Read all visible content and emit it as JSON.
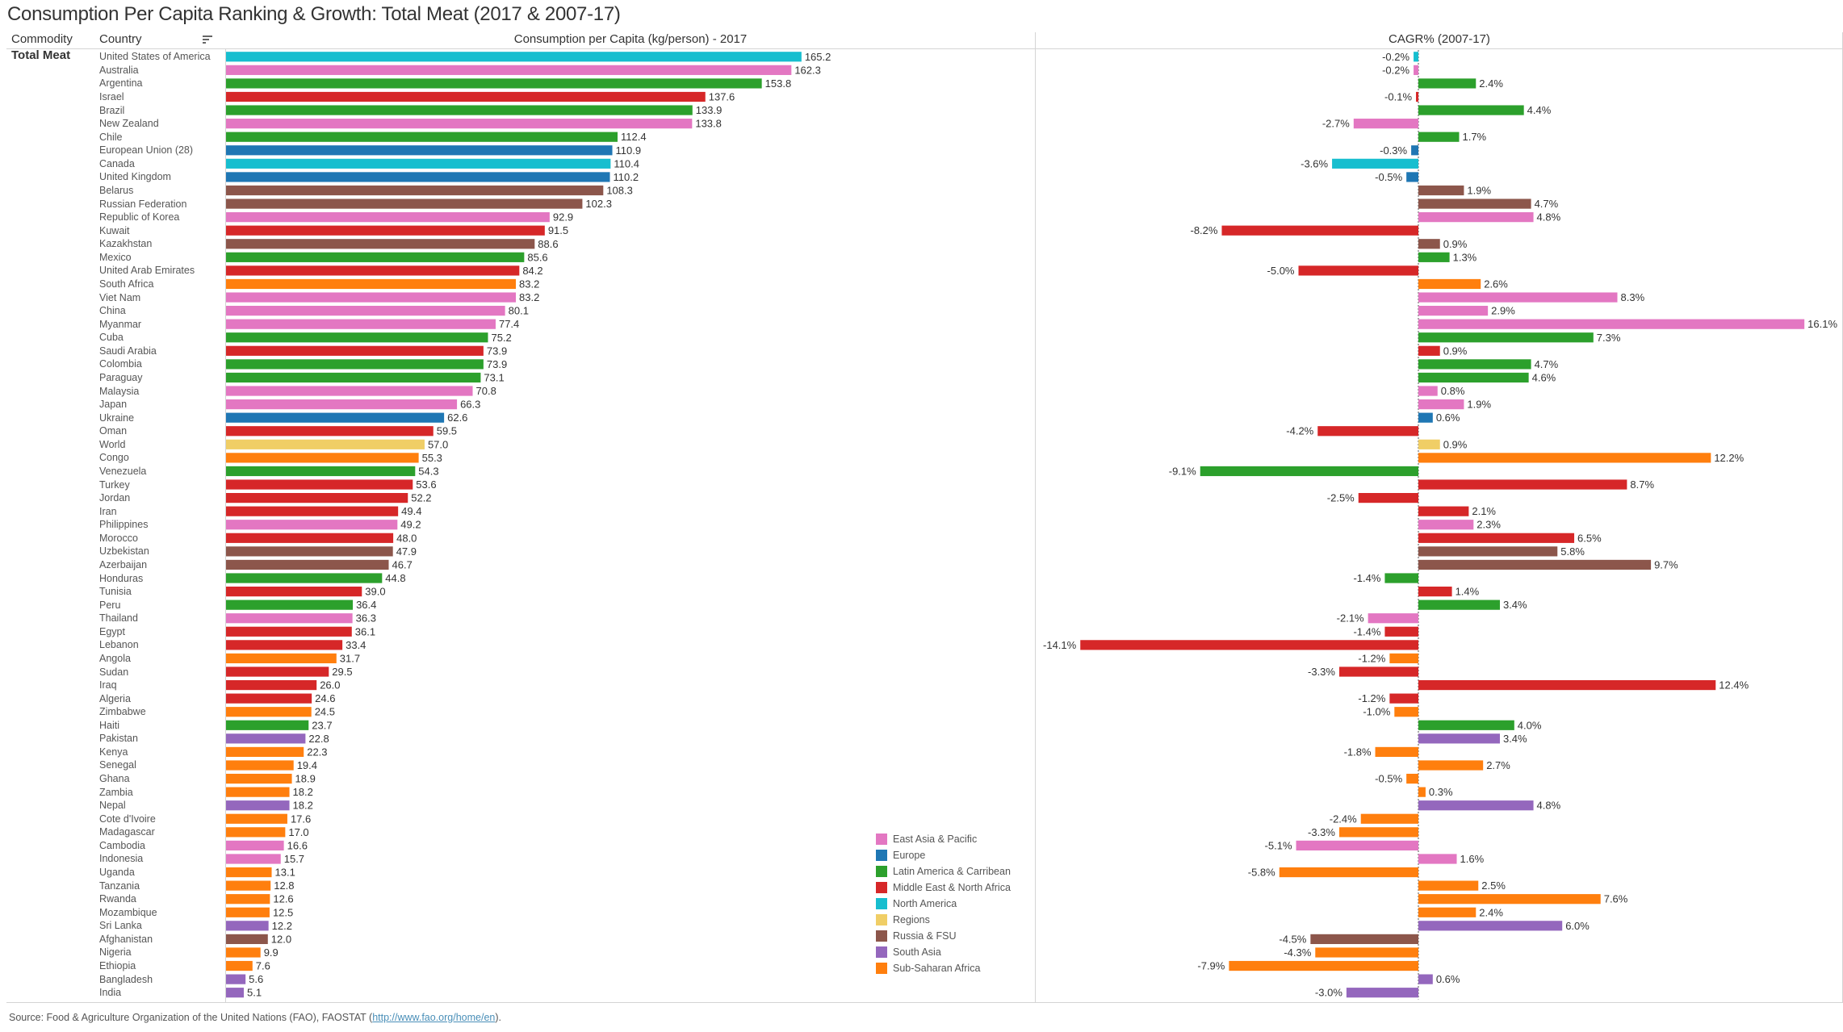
{
  "title": "Consumption Per Capita Ranking & Growth: Total Meat (2017 & 2007-17)",
  "headers": {
    "commodity": "Commodity",
    "country": "Country",
    "consumption": "Consumption per Capita (kg/person) - 2017",
    "cagr": "CAGR% (2007-17)"
  },
  "commodity_value": "Total Meat",
  "source": {
    "prefix": "Source: Food & Agriculture Organization of the United Nations (FAO), FAOSTAT (",
    "link": "http://www.fao.org/home/en",
    "suffix": ")."
  },
  "icons": {
    "sort": "sort-descending-icon"
  },
  "region_colors": {
    "East Asia & Pacific": "#e377c2",
    "Europe": "#1f77b4",
    "Latin America & Carribean": "#2ca02c",
    "Middle East & North Africa": "#d62728",
    "North America": "#17becf",
    "Regions": "#f0ce66",
    "Russia & FSU": "#8c564b",
    "South Asia": "#9467bd",
    "Sub-Saharan Africa": "#ff7f0e"
  },
  "legend": [
    "East Asia & Pacific",
    "Europe",
    "Latin America & Carribean",
    "Middle East & North Africa",
    "North America",
    "Regions",
    "Russia & FSU",
    "South Asia",
    "Sub-Saharan Africa"
  ],
  "chart_data": [
    {
      "type": "bar",
      "orientation": "horizontal",
      "title": "Consumption per Capita (kg/person) - 2017",
      "xlabel": "Consumption per Capita (kg/person) - 2017",
      "ylabel": "Country",
      "xlim": [
        0,
        180
      ],
      "grid": false,
      "legend_position": "bottom-right",
      "value_format": "0.0"
    },
    {
      "type": "bar",
      "orientation": "horizontal",
      "title": "CAGR% (2007-17)",
      "xlabel": "CAGR% (2007-17)",
      "xlim": [
        -16,
        22
      ],
      "zero_line": "dashed",
      "grid": false,
      "value_format": "0.0%"
    }
  ],
  "rows": [
    {
      "country": "United States of America",
      "region": "North America",
      "consumption": 165.2,
      "cagr": -0.2
    },
    {
      "country": "Australia",
      "region": "East Asia & Pacific",
      "consumption": 162.3,
      "cagr": -0.2
    },
    {
      "country": "Argentina",
      "region": "Latin America & Carribean",
      "consumption": 153.8,
      "cagr": 2.4
    },
    {
      "country": "Israel",
      "region": "Middle East & North Africa",
      "consumption": 137.6,
      "cagr": -0.1
    },
    {
      "country": "Brazil",
      "region": "Latin America & Carribean",
      "consumption": 133.9,
      "cagr": 4.4
    },
    {
      "country": "New Zealand",
      "region": "East Asia & Pacific",
      "consumption": 133.8,
      "cagr": -2.7
    },
    {
      "country": "Chile",
      "region": "Latin America & Carribean",
      "consumption": 112.4,
      "cagr": 1.7
    },
    {
      "country": "European Union (28)",
      "region": "Europe",
      "consumption": 110.9,
      "cagr": -0.3
    },
    {
      "country": "Canada",
      "region": "North America",
      "consumption": 110.4,
      "cagr": -3.6
    },
    {
      "country": "United Kingdom",
      "region": "Europe",
      "consumption": 110.2,
      "cagr": -0.5
    },
    {
      "country": "Belarus",
      "region": "Russia & FSU",
      "consumption": 108.3,
      "cagr": 1.9
    },
    {
      "country": "Russian Federation",
      "region": "Russia & FSU",
      "consumption": 102.3,
      "cagr": 4.7
    },
    {
      "country": "Republic of Korea",
      "region": "East Asia & Pacific",
      "consumption": 92.9,
      "cagr": 4.8
    },
    {
      "country": "Kuwait",
      "region": "Middle East & North Africa",
      "consumption": 91.5,
      "cagr": -8.2
    },
    {
      "country": "Kazakhstan",
      "region": "Russia & FSU",
      "consumption": 88.6,
      "cagr": 0.9
    },
    {
      "country": "Mexico",
      "region": "Latin America & Carribean",
      "consumption": 85.6,
      "cagr": 1.3
    },
    {
      "country": "United Arab Emirates",
      "region": "Middle East & North Africa",
      "consumption": 84.2,
      "cagr": -5.0
    },
    {
      "country": "South Africa",
      "region": "Sub-Saharan Africa",
      "consumption": 83.2,
      "cagr": 2.6
    },
    {
      "country": "Viet Nam",
      "region": "East Asia & Pacific",
      "consumption": 83.2,
      "cagr": 8.3
    },
    {
      "country": "China",
      "region": "East Asia & Pacific",
      "consumption": 80.1,
      "cagr": 2.9
    },
    {
      "country": "Myanmar",
      "region": "East Asia & Pacific",
      "consumption": 77.4,
      "cagr": 16.1
    },
    {
      "country": "Cuba",
      "region": "Latin America & Carribean",
      "consumption": 75.2,
      "cagr": 7.3
    },
    {
      "country": "Saudi Arabia",
      "region": "Middle East & North Africa",
      "consumption": 73.9,
      "cagr": 0.9
    },
    {
      "country": "Colombia",
      "region": "Latin America & Carribean",
      "consumption": 73.9,
      "cagr": 4.7
    },
    {
      "country": "Paraguay",
      "region": "Latin America & Carribean",
      "consumption": 73.1,
      "cagr": 4.6
    },
    {
      "country": "Malaysia",
      "region": "East Asia & Pacific",
      "consumption": 70.8,
      "cagr": 0.8
    },
    {
      "country": "Japan",
      "region": "East Asia & Pacific",
      "consumption": 66.3,
      "cagr": 1.9
    },
    {
      "country": "Ukraine",
      "region": "Europe",
      "consumption": 62.6,
      "cagr": 0.6
    },
    {
      "country": "Oman",
      "region": "Middle East & North Africa",
      "consumption": 59.5,
      "cagr": -4.2
    },
    {
      "country": "World",
      "region": "Regions",
      "consumption": 57.0,
      "cagr": 0.9
    },
    {
      "country": "Congo",
      "region": "Sub-Saharan Africa",
      "consumption": 55.3,
      "cagr": 12.2
    },
    {
      "country": "Venezuela",
      "region": "Latin America & Carribean",
      "consumption": 54.3,
      "cagr": -9.1
    },
    {
      "country": "Turkey",
      "region": "Middle East & North Africa",
      "consumption": 53.6,
      "cagr": 8.7
    },
    {
      "country": "Jordan",
      "region": "Middle East & North Africa",
      "consumption": 52.2,
      "cagr": -2.5
    },
    {
      "country": "Iran",
      "region": "Middle East & North Africa",
      "consumption": 49.4,
      "cagr": 2.1
    },
    {
      "country": "Philippines",
      "region": "East Asia & Pacific",
      "consumption": 49.2,
      "cagr": 2.3
    },
    {
      "country": "Morocco",
      "region": "Middle East & North Africa",
      "consumption": 48.0,
      "cagr": 6.5
    },
    {
      "country": "Uzbekistan",
      "region": "Russia & FSU",
      "consumption": 47.9,
      "cagr": 5.8
    },
    {
      "country": "Azerbaijan",
      "region": "Russia & FSU",
      "consumption": 46.7,
      "cagr": 9.7
    },
    {
      "country": "Honduras",
      "region": "Latin America & Carribean",
      "consumption": 44.8,
      "cagr": -1.4
    },
    {
      "country": "Tunisia",
      "region": "Middle East & North Africa",
      "consumption": 39.0,
      "cagr": 1.4
    },
    {
      "country": "Peru",
      "region": "Latin America & Carribean",
      "consumption": 36.4,
      "cagr": 3.4
    },
    {
      "country": "Thailand",
      "region": "East Asia & Pacific",
      "consumption": 36.3,
      "cagr": -2.1
    },
    {
      "country": "Egypt",
      "region": "Middle East & North Africa",
      "consumption": 36.1,
      "cagr": -1.4
    },
    {
      "country": "Lebanon",
      "region": "Middle East & North Africa",
      "consumption": 33.4,
      "cagr": -14.1
    },
    {
      "country": "Angola",
      "region": "Sub-Saharan Africa",
      "consumption": 31.7,
      "cagr": -1.2
    },
    {
      "country": "Sudan",
      "region": "Middle East & North Africa",
      "consumption": 29.5,
      "cagr": -3.3
    },
    {
      "country": "Iraq",
      "region": "Middle East & North Africa",
      "consumption": 26.0,
      "cagr": 12.4
    },
    {
      "country": "Algeria",
      "region": "Middle East & North Africa",
      "consumption": 24.6,
      "cagr": -1.2
    },
    {
      "country": "Zimbabwe",
      "region": "Sub-Saharan Africa",
      "consumption": 24.5,
      "cagr": -1.0
    },
    {
      "country": "Haiti",
      "region": "Latin America & Carribean",
      "consumption": 23.7,
      "cagr": 4.0
    },
    {
      "country": "Pakistan",
      "region": "South Asia",
      "consumption": 22.8,
      "cagr": 3.4
    },
    {
      "country": "Kenya",
      "region": "Sub-Saharan Africa",
      "consumption": 22.3,
      "cagr": -1.8
    },
    {
      "country": "Senegal",
      "region": "Sub-Saharan Africa",
      "consumption": 19.4,
      "cagr": 2.7
    },
    {
      "country": "Ghana",
      "region": "Sub-Saharan Africa",
      "consumption": 18.9,
      "cagr": -0.5
    },
    {
      "country": "Zambia",
      "region": "Sub-Saharan Africa",
      "consumption": 18.2,
      "cagr": 0.3
    },
    {
      "country": "Nepal",
      "region": "South Asia",
      "consumption": 18.2,
      "cagr": 4.8
    },
    {
      "country": "Cote d'Ivoire",
      "region": "Sub-Saharan Africa",
      "consumption": 17.6,
      "cagr": -2.4
    },
    {
      "country": "Madagascar",
      "region": "Sub-Saharan Africa",
      "consumption": 17.0,
      "cagr": -3.3
    },
    {
      "country": "Cambodia",
      "region": "East Asia & Pacific",
      "consumption": 16.6,
      "cagr": -5.1
    },
    {
      "country": "Indonesia",
      "region": "East Asia & Pacific",
      "consumption": 15.7,
      "cagr": 1.6
    },
    {
      "country": "Uganda",
      "region": "Sub-Saharan Africa",
      "consumption": 13.1,
      "cagr": -5.8
    },
    {
      "country": "Tanzania",
      "region": "Sub-Saharan Africa",
      "consumption": 12.8,
      "cagr": 2.5
    },
    {
      "country": "Rwanda",
      "region": "Sub-Saharan Africa",
      "consumption": 12.6,
      "cagr": 7.6
    },
    {
      "country": "Mozambique",
      "region": "Sub-Saharan Africa",
      "consumption": 12.5,
      "cagr": 2.4
    },
    {
      "country": "Sri Lanka",
      "region": "South Asia",
      "consumption": 12.2,
      "cagr": 6.0
    },
    {
      "country": "Afghanistan",
      "region": "Russia & FSU",
      "consumption": 12.0,
      "cagr": -4.5
    },
    {
      "country": "Nigeria",
      "region": "Sub-Saharan Africa",
      "consumption": 9.9,
      "cagr": -4.3
    },
    {
      "country": "Ethiopia",
      "region": "Sub-Saharan Africa",
      "consumption": 7.6,
      "cagr": -7.9
    },
    {
      "country": "Bangladesh",
      "region": "South Asia",
      "consumption": 5.6,
      "cagr": 0.6
    },
    {
      "country": "India",
      "region": "South Asia",
      "consumption": 5.1,
      "cagr": -3.0
    }
  ]
}
